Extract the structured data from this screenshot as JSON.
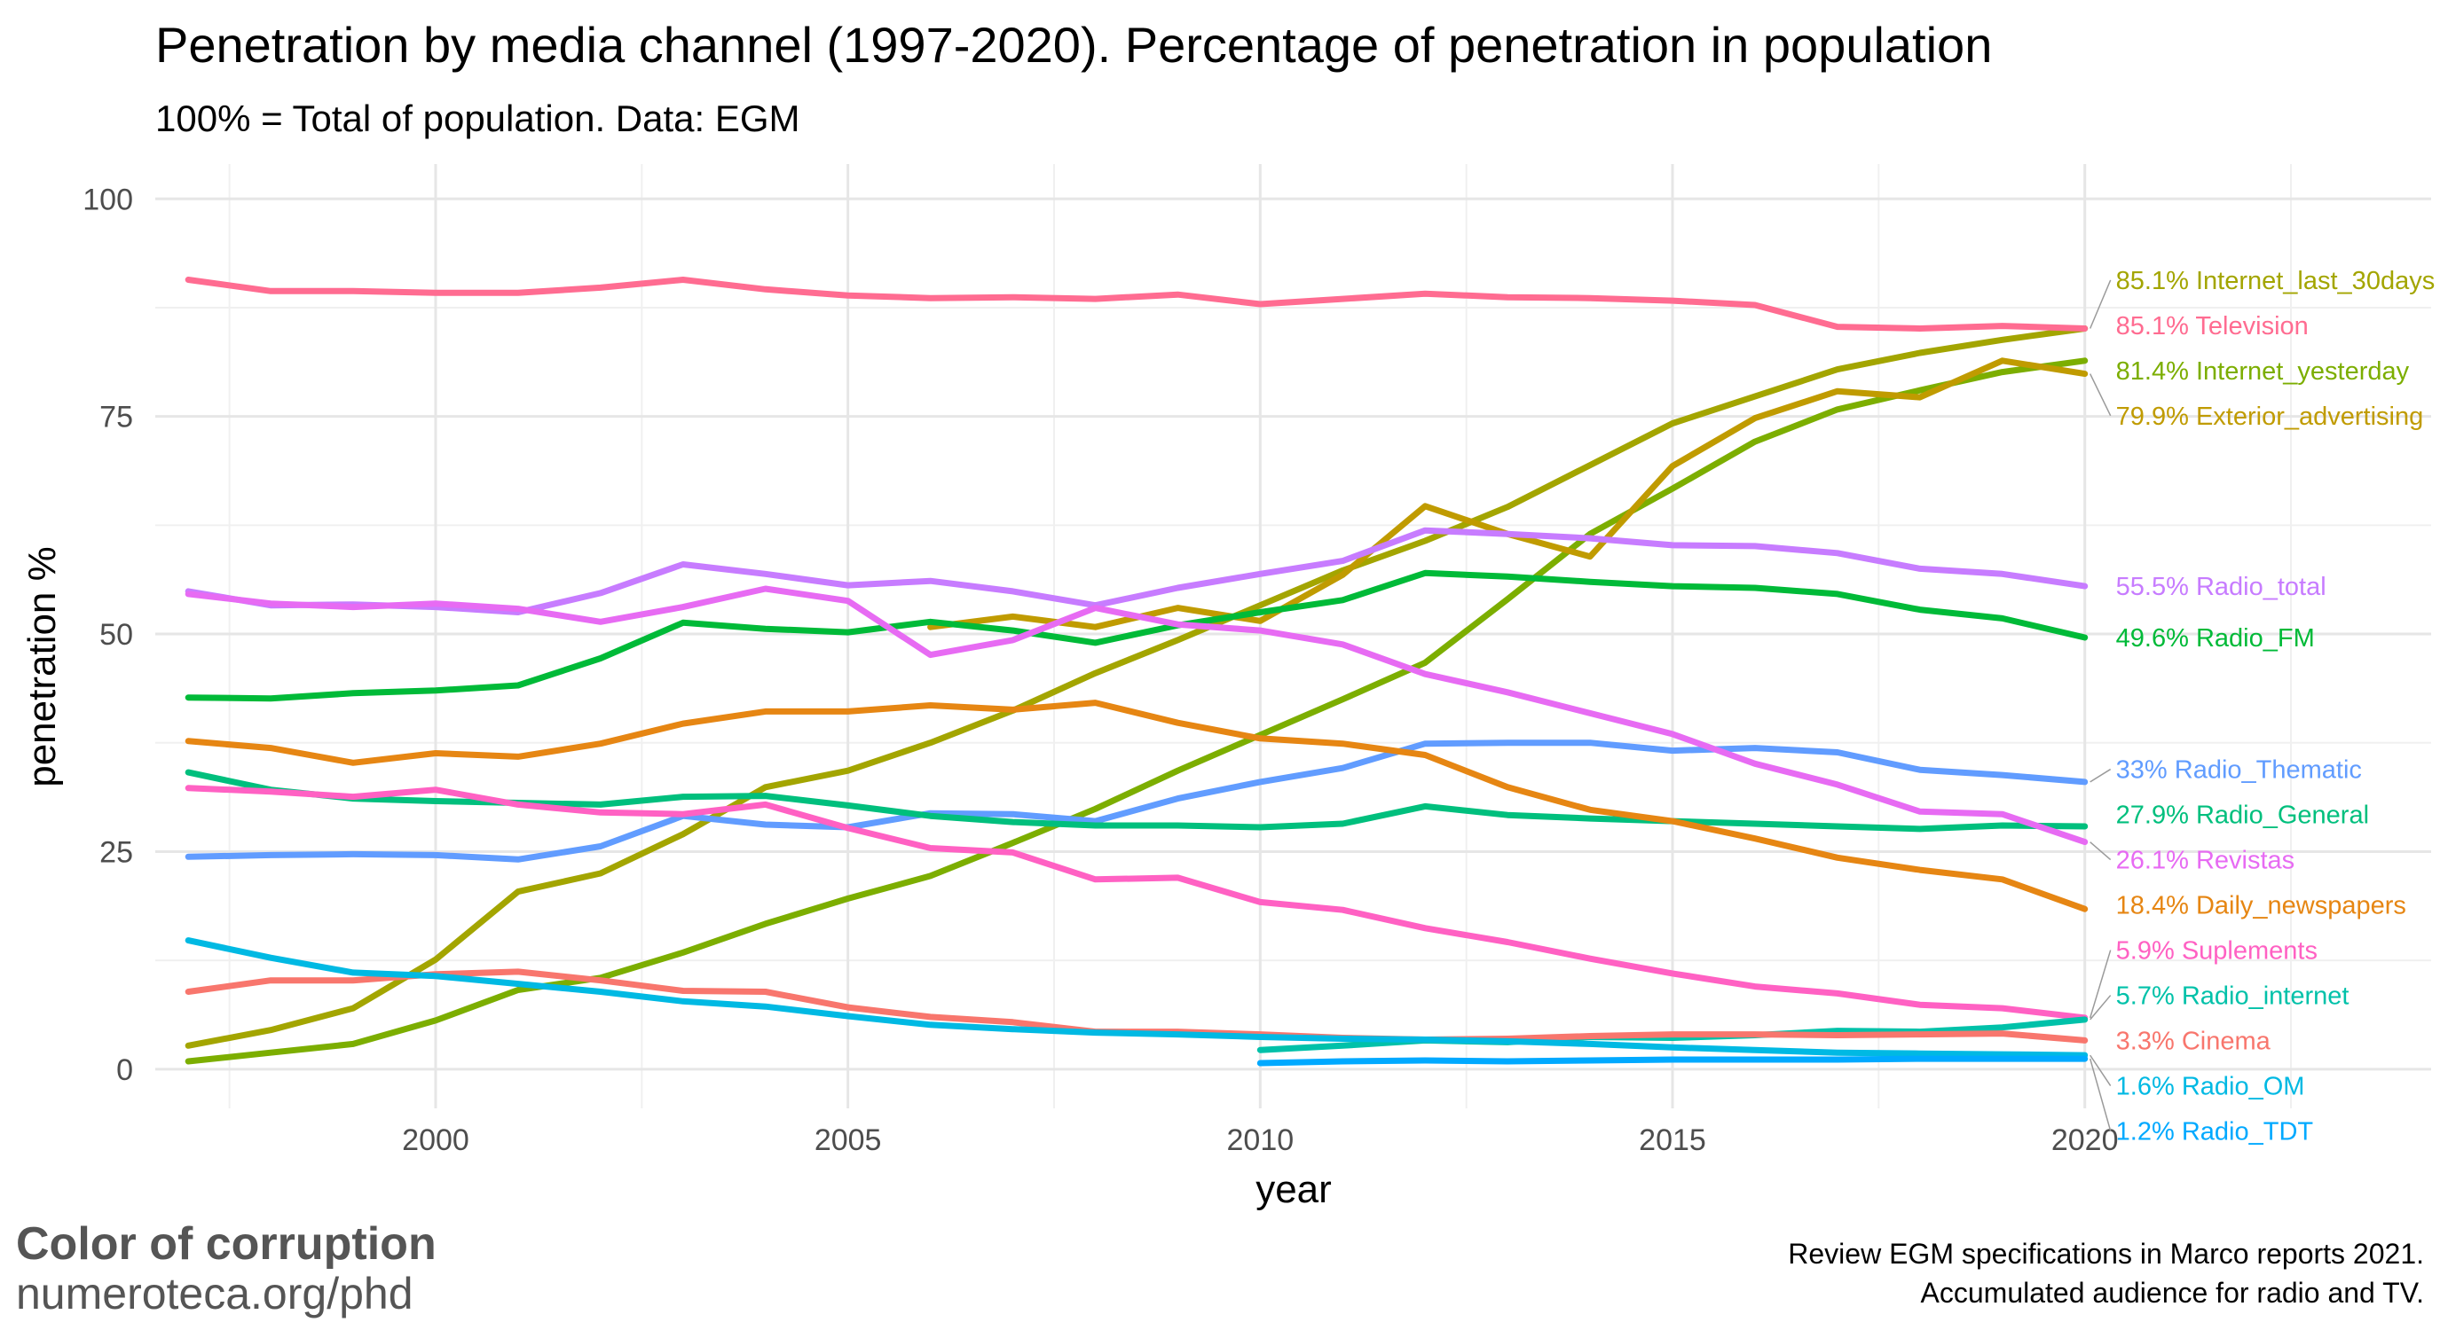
{
  "chart_data": {
    "type": "line",
    "title": "Penetration by media channel (1997-2020). Percentage of penetration in population",
    "subtitle": "100% = Total of population. Data: EGM",
    "xlabel": "year",
    "ylabel": "penetration %",
    "xlim": [
      1996.6,
      2024.2
    ],
    "ylim": [
      -4.5,
      104
    ],
    "x_ticks": [
      2000,
      2005,
      2010,
      2015,
      2020
    ],
    "y_ticks": [
      0,
      25,
      50,
      75,
      100
    ],
    "grid": true,
    "legend": "direct-labels-right",
    "years": [
      1997,
      1998,
      1999,
      2000,
      2001,
      2002,
      2003,
      2004,
      2005,
      2006,
      2007,
      2008,
      2009,
      2010,
      2011,
      2012,
      2013,
      2014,
      2015,
      2016,
      2017,
      2018,
      2019,
      2020
    ],
    "series": [
      {
        "name": "Internet_last_30days",
        "label": "85.1% Internet_last_30days",
        "color": "#A3A500",
        "start": 1997,
        "values": [
          2.7,
          4.5,
          7,
          12.6,
          20.4,
          22.5,
          27,
          32.4,
          34.3,
          37.5,
          41.2,
          45.5,
          49.3,
          53.3,
          57.3,
          60.7,
          64.6,
          69.4,
          74.2,
          77.3,
          80.4,
          82.3,
          83.8,
          85.1
        ]
      },
      {
        "name": "Television",
        "label": "85.1% Television",
        "color": "#FF6C91",
        "start": 1997,
        "values": [
          90.7,
          89.4,
          89.4,
          89.2,
          89.2,
          89.8,
          90.7,
          89.6,
          88.9,
          88.6,
          88.7,
          88.5,
          89,
          87.9,
          88.5,
          89.1,
          88.7,
          88.6,
          88.3,
          87.8,
          85.3,
          85.1,
          85.4,
          85.1
        ]
      },
      {
        "name": "Internet_yesterday",
        "label": "81.4% Internet_yesterday",
        "color": "#7CAE00",
        "start": 1997,
        "values": [
          0.9,
          1.9,
          2.9,
          5.6,
          9.1,
          10.5,
          13.4,
          16.7,
          19.6,
          22.2,
          26,
          29.9,
          34.3,
          38.4,
          42.5,
          46.7,
          54,
          61.5,
          66.7,
          72.1,
          75.8,
          78,
          80.1,
          81.4
        ]
      },
      {
        "name": "Exterior_advertising",
        "label": "79.9% Exterior_advertising",
        "color": "#C09B00",
        "start": 2006,
        "values": [
          50.8,
          52,
          50.8,
          53,
          51.5,
          56.8,
          64.7,
          61.5,
          58.9,
          69.3,
          74.8,
          77.9,
          77.2,
          81.4,
          79.9
        ]
      },
      {
        "name": "Radio_total",
        "label": "55.5% Radio_total",
        "color": "#C77CFF",
        "start": 1997,
        "values": [
          54.9,
          53.3,
          53.4,
          53.1,
          52.5,
          54.7,
          58,
          56.9,
          55.6,
          56.1,
          54.9,
          53.3,
          55.3,
          56.9,
          58.4,
          61.9,
          61.5,
          61,
          60.2,
          60.1,
          59.3,
          57.5,
          56.9,
          55.5
        ]
      },
      {
        "name": "Radio_FM",
        "label": "49.6% Radio_FM",
        "color": "#00BA38",
        "start": 1997,
        "values": [
          42.7,
          42.6,
          43.2,
          43.5,
          44.1,
          47.2,
          51.3,
          50.6,
          50.2,
          51.4,
          50.4,
          49,
          51,
          52.5,
          53.9,
          57,
          56.6,
          56,
          55.5,
          55.3,
          54.6,
          52.8,
          51.8,
          49.6
        ]
      },
      {
        "name": "Radio_Thematic",
        "label": "33% Radio_Thematic",
        "color": "#619CFF",
        "start": 1997,
        "values": [
          24.4,
          24.6,
          24.7,
          24.6,
          24.1,
          25.6,
          29.1,
          28.1,
          27.8,
          29.4,
          29.3,
          28.5,
          31.1,
          33,
          34.6,
          37.4,
          37.5,
          37.5,
          36.6,
          36.9,
          36.4,
          34.4,
          33.8,
          33
        ]
      },
      {
        "name": "Radio_General",
        "label": "27.9% Radio_General",
        "color": "#00BF7D",
        "start": 1997,
        "values": [
          34.1,
          32.1,
          31.1,
          30.8,
          30.6,
          30.4,
          31.3,
          31.4,
          30.3,
          29.1,
          28.4,
          28,
          28,
          27.8,
          28.2,
          30.2,
          29.2,
          28.8,
          28.5,
          28.2,
          27.9,
          27.6,
          28,
          27.9
        ]
      },
      {
        "name": "Revistas",
        "label": "26.1% Revistas",
        "color": "#E76BF3",
        "start": 1997,
        "values": [
          54.6,
          53.5,
          53.1,
          53.5,
          52.9,
          51.4,
          53.1,
          55.2,
          53.8,
          47.6,
          49.3,
          53,
          51.1,
          50.4,
          48.8,
          45.4,
          43.3,
          40.9,
          38.5,
          35.1,
          32.7,
          29.6,
          29.3,
          26.1
        ]
      },
      {
        "name": "Daily_newspapers",
        "label": "18.4% Daily_newspapers",
        "color": "#E68613",
        "start": 1997,
        "values": [
          37.7,
          36.9,
          35.2,
          36.3,
          35.9,
          37.4,
          39.7,
          41.1,
          41.1,
          41.8,
          41.3,
          42.1,
          39.8,
          38,
          37.4,
          36.1,
          32.4,
          29.8,
          28.5,
          26.5,
          24.3,
          22.9,
          21.8,
          18.4
        ]
      },
      {
        "name": "Suplements",
        "label": "5.9% Suplements",
        "color": "#FF61C3",
        "start": 1997,
        "values": [
          32.3,
          31.9,
          31.3,
          32.1,
          30.4,
          29.5,
          29.3,
          30.4,
          27.7,
          25.4,
          24.9,
          21.8,
          22,
          19.2,
          18.3,
          16.2,
          14.6,
          12.7,
          11,
          9.5,
          8.7,
          7.4,
          7,
          5.9
        ]
      },
      {
        "name": "Radio_internet",
        "label": "5.7% Radio_internet",
        "color": "#00C1A9",
        "start": 2010,
        "values": [
          2.2,
          2.7,
          3.3,
          3.1,
          3.7,
          3.6,
          3.9,
          4.4,
          4.3,
          4.8,
          5.7
        ]
      },
      {
        "name": "Cinema",
        "label": "3.3% Cinema",
        "color": "#F8766D",
        "start": 1997,
        "values": [
          8.9,
          10.2,
          10.2,
          10.9,
          11.2,
          10.2,
          9,
          8.9,
          7.1,
          6,
          5.4,
          4.3,
          4.3,
          4,
          3.6,
          3.4,
          3.5,
          3.8,
          4,
          4,
          3.9,
          4,
          4.1,
          3.3
        ]
      },
      {
        "name": "Radio_OM",
        "label": "1.6% Radio_OM",
        "color": "#00B9E3",
        "start": 1997,
        "values": [
          14.8,
          12.8,
          11.1,
          10.7,
          9.8,
          8.9,
          7.8,
          7.2,
          6.1,
          5.1,
          4.6,
          4.2,
          4,
          3.7,
          3.5,
          3.4,
          3.2,
          2.9,
          2.5,
          2.2,
          1.9,
          1.8,
          1.7,
          1.6
        ]
      },
      {
        "name": "Radio_TDT",
        "label": "1.2% Radio_TDT",
        "color": "#00A9FF",
        "start": 2010,
        "values": [
          0.7,
          0.9,
          1,
          0.9,
          1,
          1.1,
          1.1,
          1.1,
          1.2,
          1.2,
          1.2
        ]
      }
    ]
  },
  "caption_line1": "Review EGM specifications in Marco reports 2021.",
  "caption_line2": "Accumulated audience for radio and TV.",
  "brand_name": "Color of corruption",
  "brand_url": "numeroteca.org/phd"
}
